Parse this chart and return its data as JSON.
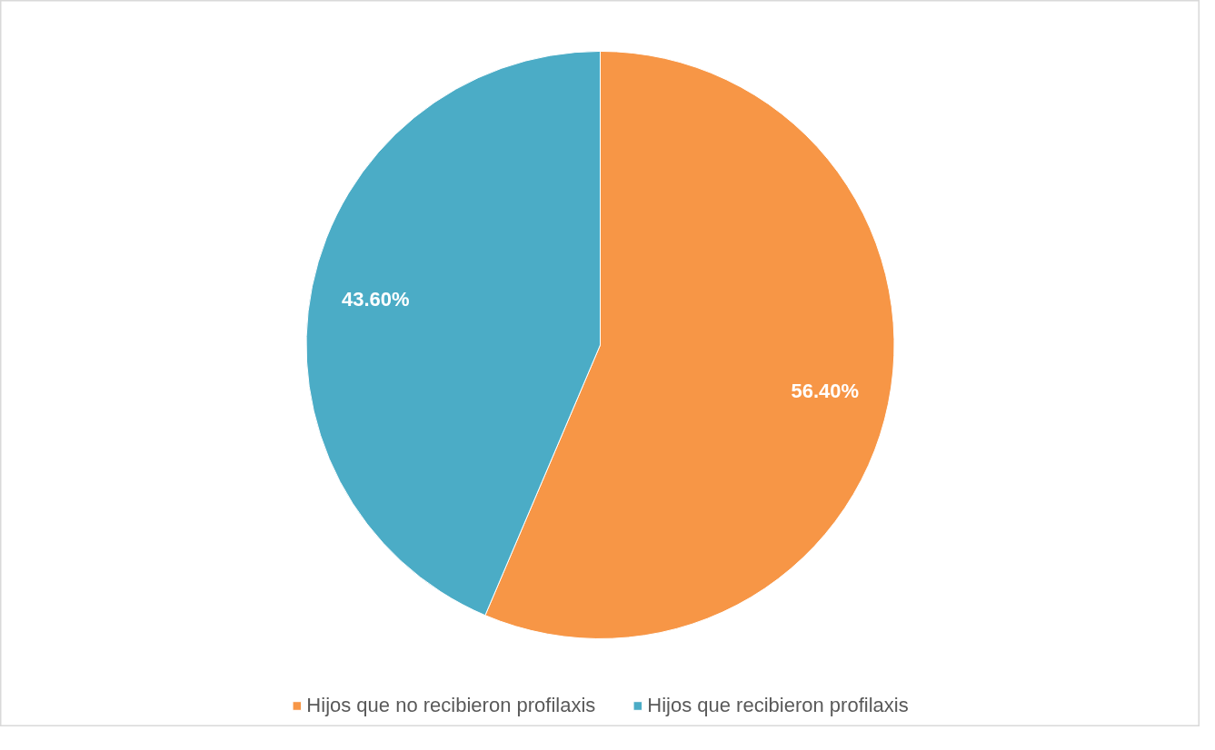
{
  "chart_data": {
    "type": "pie",
    "categories": [
      "Hijos que no recibieron profilaxis",
      "Hijos que recibieron profilaxis"
    ],
    "values": [
      56.4,
      43.6
    ],
    "colors": [
      "#f79646",
      "#4bacc6"
    ],
    "value_labels": [
      "56.40%",
      "43.60%"
    ],
    "legend": "bottom"
  }
}
